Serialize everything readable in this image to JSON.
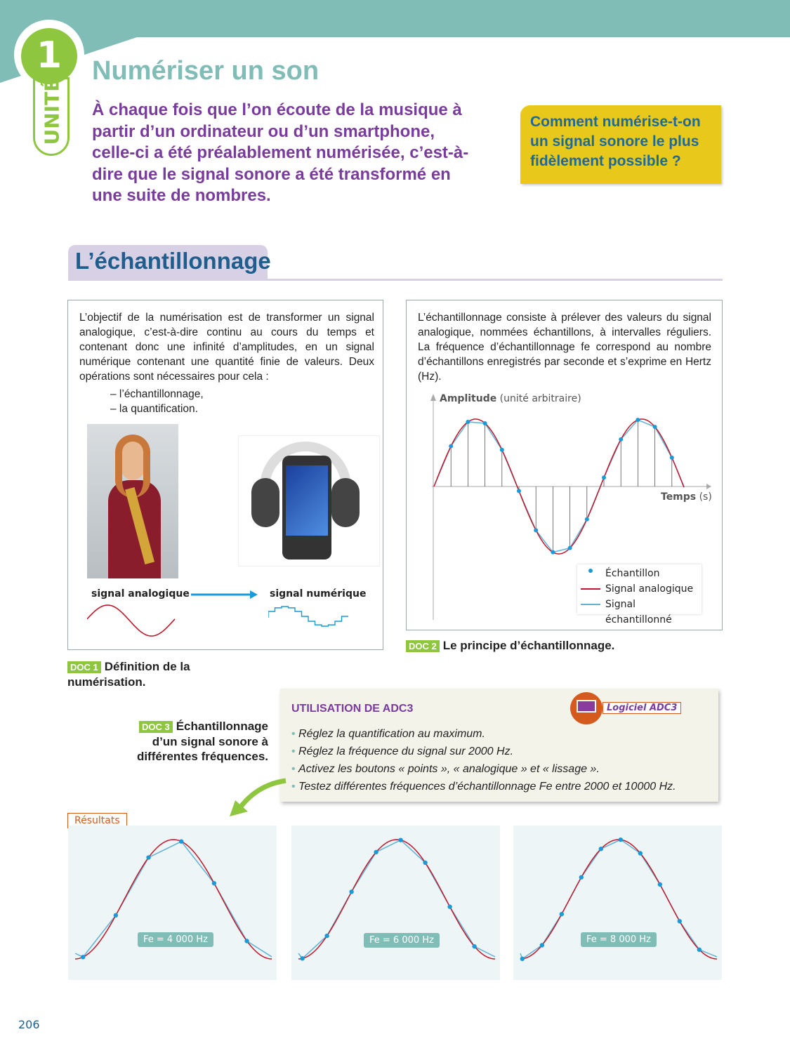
{
  "unit": {
    "number": "1",
    "label": "UNITÉ"
  },
  "header": {
    "title": "Numériser un son",
    "intro": "À chaque fois que l’on écoute de la musique à partir d’un ordinateur ou d’un smartphone, celle-ci a été préalablement numérisée, c’est-à-dire que le signal sonore a été transformé en une suite de nombres.",
    "question": "Comment numérise-t-on un signal sonore le plus fidèlement possible ?"
  },
  "section": {
    "title": "L’échantillonnage"
  },
  "doc1": {
    "text": "L’objectif de la numérisation est de transformer un signal analogique, c’est-à-dire continu au cours du temps et contenant donc une infinité d’amplitudes, en un signal numérique contenant une quantité finie de valeurs. Deux opérations sont nécessaires pour cela :",
    "items": [
      "– l’échantillonnage,",
      "– la quantification."
    ],
    "label_analog": "signal analogique",
    "label_digital": "signal numérique",
    "badge": "DOC 1",
    "caption": "Définition de la numérisation."
  },
  "doc2": {
    "text": "L’échantillonnage consiste à prélever des valeurs du signal analogique, nommées échantillons, à intervalles réguliers. La fréquence d’échantillonnage fe correspond au nombre d’échantillons enregistrés par seconde et s’exprime en Hertz (Hz).",
    "y_label": "Amplitude",
    "y_unit": "(unité arbitraire)",
    "x_label": "Temps",
    "x_unit": "(s)",
    "legend": [
      "Échantillon",
      "Signal analogique",
      "Signal échantillonné"
    ],
    "badge": "DOC 2",
    "caption": "Le principe d’échantillonnage."
  },
  "doc3": {
    "badge": "DOC 3",
    "caption": "Échantillonnage d’un signal sonore à différentes fréquences."
  },
  "adc3": {
    "title": "UTILISATION DE ADC3",
    "software": "Logiciel ADC3",
    "steps": [
      "Réglez la quantification au maximum.",
      "Réglez la fréquence du signal sur 2000 Hz.",
      "Activez les boutons « points », « analogique » et « lissage ».",
      "Testez différentes fréquences d’échantillonnage Fe entre 2000 et 10000 Hz."
    ]
  },
  "results": {
    "label": "Résultats",
    "panels": [
      {
        "fe": "Fe = 4 000 Hz",
        "samples": 6
      },
      {
        "fe": "Fe = 6 000 Hz",
        "samples": 8
      },
      {
        "fe": "Fe = 8 000 Hz",
        "samples": 10
      }
    ]
  },
  "page_number": "206",
  "colors": {
    "teal": "#7fbdb6",
    "purple": "#7a3c9c",
    "green": "#8ec63f",
    "yellow": "#e9c81c",
    "analog": "#c0182a",
    "sampled": "#5fb3d6"
  }
}
